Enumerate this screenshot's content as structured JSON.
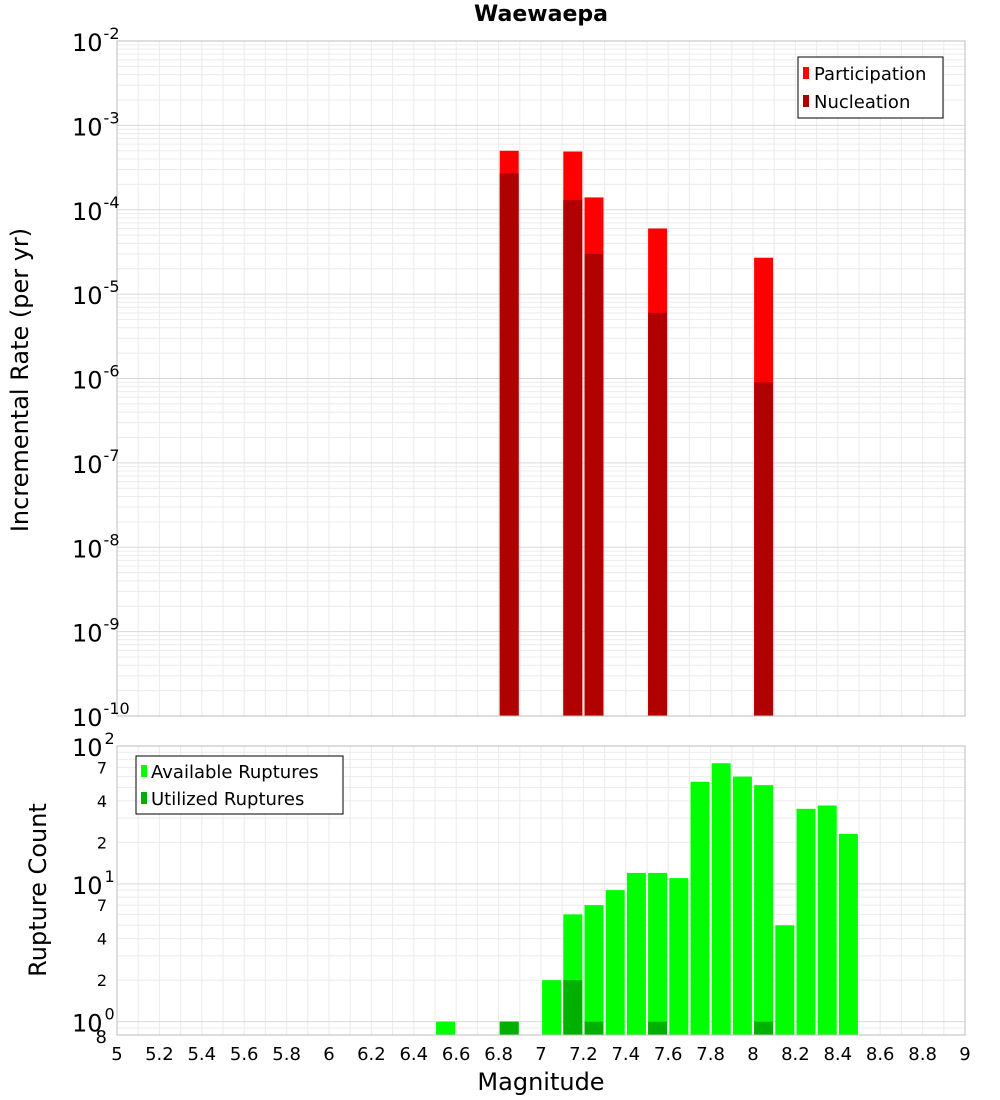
{
  "title": "Waewaepa",
  "xlabel": "Magnitude",
  "top_ylabel": "Incremental Rate (per yr)",
  "bottom_ylabel": "Rupture Count",
  "colors": {
    "participation": "#ff0000",
    "nucleation": "#b00000",
    "available": "#00ff00",
    "utilized": "#00b000"
  },
  "chart_data": [
    {
      "type": "bar",
      "title": "Waewaepa",
      "xlabel": "",
      "ylabel": "Incremental Rate (per yr)",
      "xlim": [
        5,
        9
      ],
      "ylim": [
        1e-10,
        0.01
      ],
      "yscale": "log",
      "grid": true,
      "legend_position": "top-right",
      "y_tick_exponents": [
        "-10",
        "-9",
        "-8",
        "-7",
        "-6",
        "-5",
        "-4",
        "-3",
        "-2"
      ],
      "y_tick_base": "10",
      "x": [
        6.85,
        7.15,
        7.25,
        7.55,
        8.05
      ],
      "series": [
        {
          "name": "Participation",
          "values": [
            0.0005,
            0.00049,
            0.00014,
            6e-05,
            2.7e-05
          ]
        },
        {
          "name": "Nucleation",
          "values": [
            0.00027,
            0.00013,
            3e-05,
            6e-06,
            9e-07
          ]
        }
      ]
    },
    {
      "type": "bar",
      "title": "",
      "xlabel": "Magnitude",
      "ylabel": "Rupture Count",
      "xlim": [
        5,
        9
      ],
      "ylim": [
        0.8,
        100
      ],
      "yscale": "log",
      "grid": true,
      "legend_position": "top-left",
      "y_major_ticks": [
        {
          "base": "10",
          "exp": "0"
        },
        {
          "base": "10",
          "exp": "1"
        },
        {
          "base": "10",
          "exp": "2"
        }
      ],
      "y_minor_ticks": [
        "2",
        "4",
        "7",
        "2",
        "4",
        "7"
      ],
      "y_bottom_tick": "8",
      "x_ticks": [
        "5",
        "5.2",
        "5.4",
        "5.6",
        "5.8",
        "6",
        "6.2",
        "6.4",
        "6.6",
        "6.8",
        "7",
        "7.2",
        "7.4",
        "7.6",
        "7.8",
        "8",
        "8.2",
        "8.4",
        "8.6",
        "8.8",
        "9"
      ],
      "x": [
        6.55,
        6.85,
        7.05,
        7.15,
        7.25,
        7.35,
        7.45,
        7.55,
        7.65,
        7.75,
        7.85,
        7.95,
        8.05,
        8.15,
        8.25,
        8.35,
        8.45
      ],
      "series": [
        {
          "name": "Available Ruptures",
          "values": [
            1,
            1,
            2,
            6,
            7,
            9,
            12,
            12,
            11,
            55,
            75,
            60,
            52,
            5,
            35,
            37,
            23
          ]
        },
        {
          "name": "Utilized Ruptures",
          "values": [
            0,
            1,
            0,
            2,
            1,
            0,
            0,
            1,
            0,
            0,
            0,
            0,
            1,
            0,
            0,
            0,
            0
          ]
        }
      ]
    }
  ]
}
